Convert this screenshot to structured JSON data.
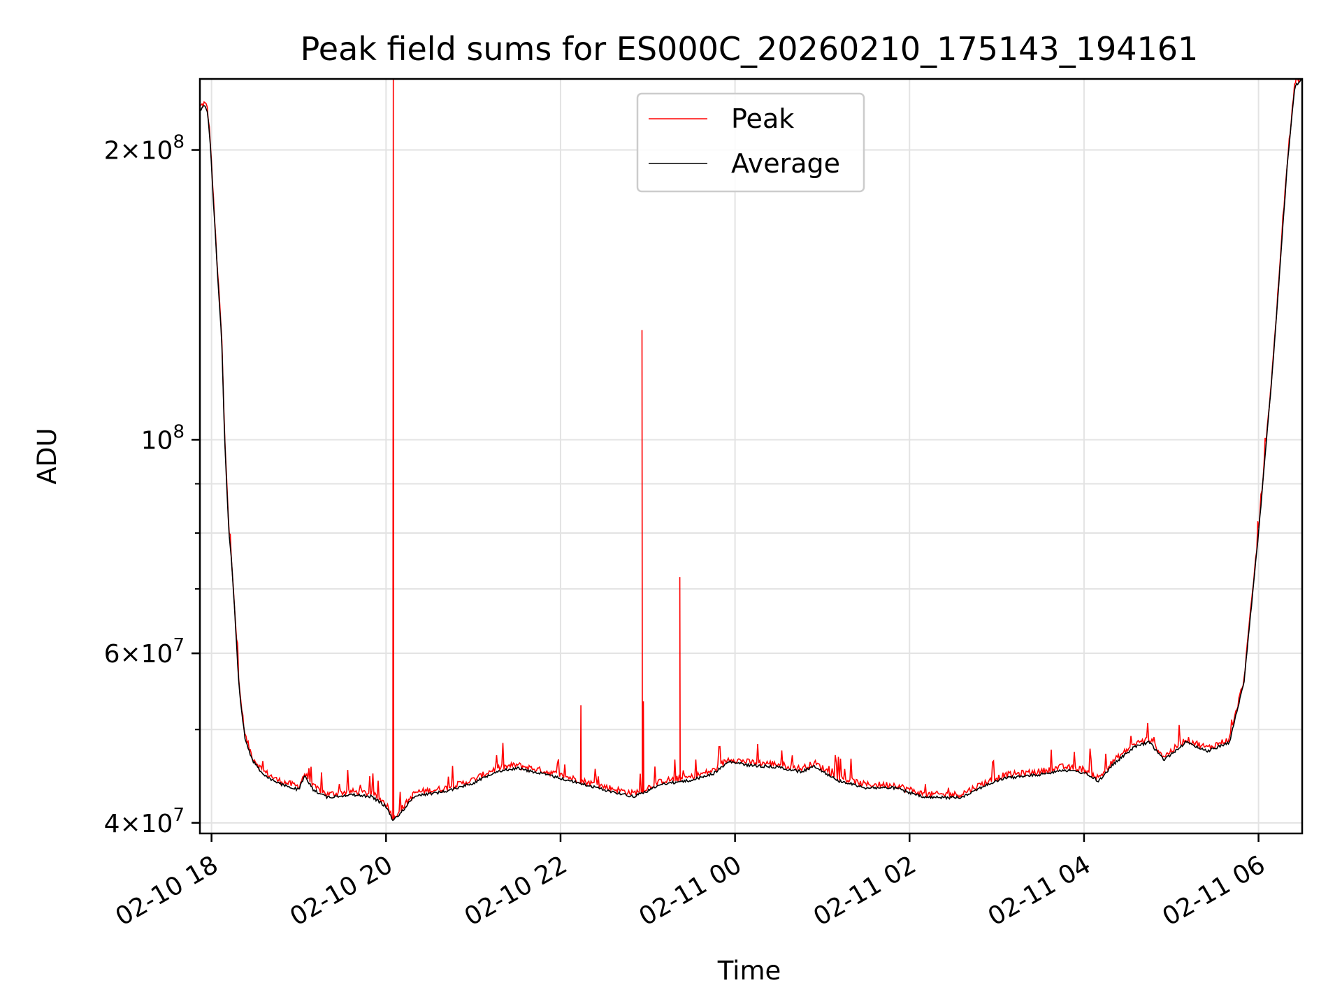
{
  "chart_data": {
    "type": "line",
    "title": "Peak field sums for ES000C_20260210_175143_194161",
    "xlabel": "Time",
    "ylabel": "ADU",
    "y_scale": "log",
    "grid": true,
    "legend_position": "top-center",
    "xlim": [
      "2026-02-10 17:52",
      "2026-02-11 06:30"
    ],
    "ylim": [
      39000000,
      237000000
    ],
    "x_ticks": [
      {
        "time": "2026-02-10 18:00",
        "label": "02-10 18"
      },
      {
        "time": "2026-02-10 20:00",
        "label": "02-10 20"
      },
      {
        "time": "2026-02-10 22:00",
        "label": "02-10 22"
      },
      {
        "time": "2026-02-11 00:00",
        "label": "02-11 00"
      },
      {
        "time": "2026-02-11 02:00",
        "label": "02-11 02"
      },
      {
        "time": "2026-02-11 04:00",
        "label": "02-11 04"
      },
      {
        "time": "2026-02-11 06:00",
        "label": "02-11 06"
      }
    ],
    "y_ticks_major": [
      {
        "value": 40000000,
        "base": "4",
        "exp": "7"
      },
      {
        "value": 60000000,
        "base": "6",
        "exp": "7"
      },
      {
        "value": 100000000,
        "base": "",
        "exp": "8"
      },
      {
        "value": 200000000,
        "base": "2",
        "exp": "8"
      }
    ],
    "y_ticks_minor": [
      50000000,
      70000000,
      80000000,
      90000000
    ],
    "series": [
      {
        "name": "Peak",
        "color": "#ff0000",
        "spikes": [
          {
            "time": "2026-02-10 20:05",
            "value": 237000000
          },
          {
            "time": "2026-02-10 22:14",
            "value": 53000000
          },
          {
            "time": "2026-02-10 22:56",
            "value": 130000000
          },
          {
            "time": "2026-02-10 22:57",
            "value": 53500000
          },
          {
            "time": "2026-02-10 23:22",
            "value": 72000000
          }
        ]
      },
      {
        "name": "Average",
        "color": "#000000",
        "points": [
          [
            "2026-02-10 17:52",
            220000000
          ],
          [
            "2026-02-10 17:55",
            222000000
          ],
          [
            "2026-02-10 17:57",
            220000000
          ],
          [
            "2026-02-10 17:59",
            205000000
          ],
          [
            "2026-02-10 18:01",
            180000000
          ],
          [
            "2026-02-10 18:04",
            150000000
          ],
          [
            "2026-02-10 18:07",
            127000000
          ],
          [
            "2026-02-10 18:09",
            100000000
          ],
          [
            "2026-02-10 18:12",
            80000000
          ],
          [
            "2026-02-10 18:14",
            74000000
          ],
          [
            "2026-02-10 18:16",
            66000000
          ],
          [
            "2026-02-10 18:19",
            55000000
          ],
          [
            "2026-02-10 18:23",
            49000000
          ],
          [
            "2026-02-10 18:28",
            46500000
          ],
          [
            "2026-02-10 18:35",
            45000000
          ],
          [
            "2026-02-10 18:45",
            44000000
          ],
          [
            "2026-02-10 19:00",
            43300000
          ],
          [
            "2026-02-10 19:04",
            44700000
          ],
          [
            "2026-02-10 19:10",
            43300000
          ],
          [
            "2026-02-10 19:20",
            42500000
          ],
          [
            "2026-02-10 19:35",
            42800000
          ],
          [
            "2026-02-10 19:50",
            42600000
          ],
          [
            "2026-02-10 20:00",
            41600000
          ],
          [
            "2026-02-10 20:05",
            40200000
          ],
          [
            "2026-02-10 20:12",
            41300000
          ],
          [
            "2026-02-10 20:20",
            42700000
          ],
          [
            "2026-02-10 20:40",
            43100000
          ],
          [
            "2026-02-10 21:00",
            44000000
          ],
          [
            "2026-02-10 21:15",
            45200000
          ],
          [
            "2026-02-10 21:30",
            45600000
          ],
          [
            "2026-02-10 21:50",
            44900000
          ],
          [
            "2026-02-10 22:10",
            44100000
          ],
          [
            "2026-02-10 22:30",
            43300000
          ],
          [
            "2026-02-10 22:50",
            42600000
          ],
          [
            "2026-02-10 23:00",
            43200000
          ],
          [
            "2026-02-10 23:10",
            43900000
          ],
          [
            "2026-02-10 23:30",
            44300000
          ],
          [
            "2026-02-10 23:45",
            45000000
          ],
          [
            "2026-02-10 23:56",
            46300000
          ],
          [
            "2026-02-11 00:10",
            45900000
          ],
          [
            "2026-02-11 00:30",
            45700000
          ],
          [
            "2026-02-11 00:45",
            45200000
          ],
          [
            "2026-02-11 00:55",
            45800000
          ],
          [
            "2026-02-11 01:10",
            44300000
          ],
          [
            "2026-02-11 01:30",
            43500000
          ],
          [
            "2026-02-11 01:50",
            43500000
          ],
          [
            "2026-02-11 02:10",
            42500000
          ],
          [
            "2026-02-11 02:35",
            42500000
          ],
          [
            "2026-02-11 02:50",
            43600000
          ],
          [
            "2026-02-11 03:05",
            44500000
          ],
          [
            "2026-02-11 03:30",
            44900000
          ],
          [
            "2026-02-11 03:45",
            45400000
          ],
          [
            "2026-02-11 04:00",
            45100000
          ],
          [
            "2026-02-11 04:10",
            44200000
          ],
          [
            "2026-02-11 04:20",
            46000000
          ],
          [
            "2026-02-11 04:35",
            48000000
          ],
          [
            "2026-02-11 04:45",
            48500000
          ],
          [
            "2026-02-11 04:55",
            46500000
          ],
          [
            "2026-02-11 05:10",
            48500000
          ],
          [
            "2026-02-11 05:25",
            47500000
          ],
          [
            "2026-02-11 05:40",
            48500000
          ],
          [
            "2026-02-11 05:50",
            56000000
          ],
          [
            "2026-02-11 06:00",
            80000000
          ],
          [
            "2026-02-11 06:10",
            120000000
          ],
          [
            "2026-02-11 06:20",
            195000000
          ],
          [
            "2026-02-11 06:25",
            233000000
          ],
          [
            "2026-02-11 06:30",
            237000000
          ]
        ]
      }
    ]
  }
}
